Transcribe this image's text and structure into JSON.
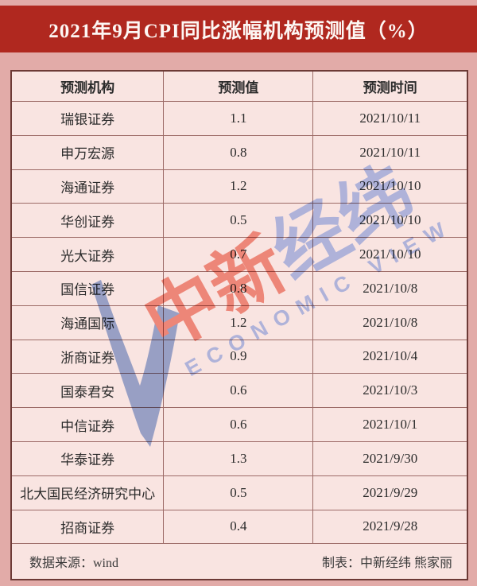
{
  "title": "2021年9月CPI同比涨幅机构预测值（%）",
  "table": {
    "headers": [
      "预测机构",
      "预测值",
      "预测时间"
    ],
    "rows": [
      {
        "institution": "瑞银证券",
        "value": "1.1",
        "date": "2021/10/11"
      },
      {
        "institution": "申万宏源",
        "value": "0.8",
        "date": "2021/10/11"
      },
      {
        "institution": "海通证券",
        "value": "1.2",
        "date": "2021/10/10"
      },
      {
        "institution": "华创证券",
        "value": "0.5",
        "date": "2021/10/10"
      },
      {
        "institution": "光大证券",
        "value": "0.7",
        "date": "2021/10/10"
      },
      {
        "institution": "国信证券",
        "value": "0.8",
        "date": "2021/10/8"
      },
      {
        "institution": "海通国际",
        "value": "1.2",
        "date": "2021/10/8"
      },
      {
        "institution": "浙商证券",
        "value": "0.9",
        "date": "2021/10/4"
      },
      {
        "institution": "国泰君安",
        "value": "0.6",
        "date": "2021/10/3"
      },
      {
        "institution": "中信证券",
        "value": "0.6",
        "date": "2021/10/1"
      },
      {
        "institution": "华泰证券",
        "value": "1.3",
        "date": "2021/9/30"
      },
      {
        "institution": "北大国民经济研究中心",
        "value": "0.5",
        "date": "2021/9/29"
      },
      {
        "institution": "招商证券",
        "value": "0.4",
        "date": "2021/9/28"
      }
    ]
  },
  "footer": {
    "source": "数据来源：wind",
    "credit": "制表：中新经纬 熊家丽"
  },
  "watermark": {
    "cn_red": "中新",
    "cn_blue": "经纬",
    "en": "ECONOMIC VIEW"
  },
  "colors": {
    "title_bar": "#b0281f",
    "page_background": "#e2aba8",
    "cell_background": "#f9e4e1",
    "inner_border": "#9d6b67",
    "outer_border": "#6d3a36",
    "watermark_red": "#f28877",
    "watermark_blue": "#a9c0f5"
  },
  "chart_data": {
    "type": "table",
    "title": "2021年9月CPI同比涨幅机构预测值（%）",
    "columns": [
      "预测机构",
      "预测值",
      "预测时间"
    ],
    "rows": [
      [
        "瑞银证券",
        1.1,
        "2021/10/11"
      ],
      [
        "申万宏源",
        0.8,
        "2021/10/11"
      ],
      [
        "海通证券",
        1.2,
        "2021/10/10"
      ],
      [
        "华创证券",
        0.5,
        "2021/10/10"
      ],
      [
        "光大证券",
        0.7,
        "2021/10/10"
      ],
      [
        "国信证券",
        0.8,
        "2021/10/8"
      ],
      [
        "海通国际",
        1.2,
        "2021/10/8"
      ],
      [
        "浙商证券",
        0.9,
        "2021/10/4"
      ],
      [
        "国泰君安",
        0.6,
        "2021/10/3"
      ],
      [
        "中信证券",
        0.6,
        "2021/10/1"
      ],
      [
        "华泰证券",
        1.3,
        "2021/9/30"
      ],
      [
        "北大国民经济研究中心",
        0.5,
        "2021/9/29"
      ],
      [
        "招商证券",
        0.4,
        "2021/9/28"
      ]
    ],
    "source": "wind",
    "credit": "中新经纬 熊家丽"
  }
}
